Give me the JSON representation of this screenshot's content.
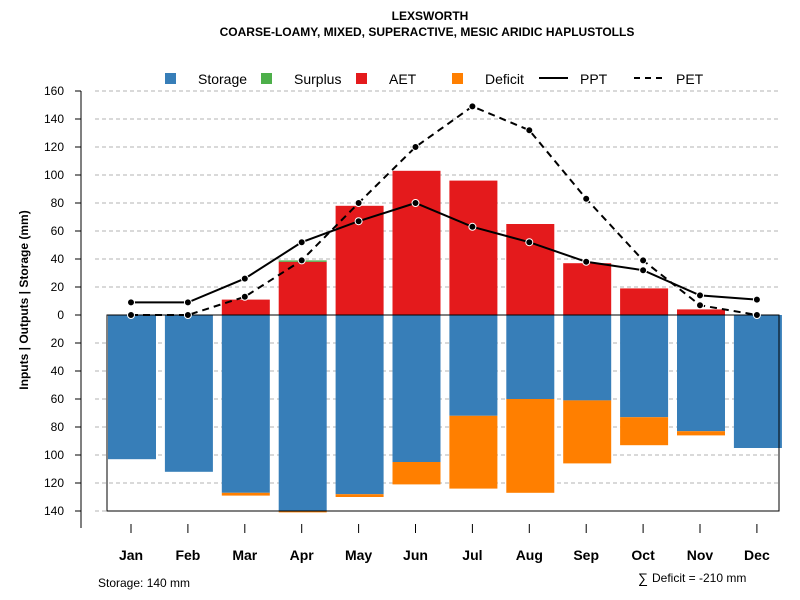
{
  "chart_data": {
    "type": "bar",
    "title": "LEXSWORTH",
    "subtitle": "COARSE-LOAMY, MIXED, SUPERACTIVE, MESIC ARIDIC HAPLUSTOLLS",
    "ylabel": "Inputs | Outputs | Storage    (mm)",
    "categories": [
      "Jan",
      "Feb",
      "Mar",
      "Apr",
      "May",
      "Jun",
      "Jul",
      "Aug",
      "Sep",
      "Oct",
      "Nov",
      "Dec"
    ],
    "ylim": [
      -140,
      160
    ],
    "y_ticks_upper": [
      "160",
      "140",
      "120",
      "100",
      "80",
      "60",
      "40",
      "20",
      "0"
    ],
    "y_ticks_lower": [
      "20",
      "40",
      "60",
      "80",
      "100",
      "120",
      "140"
    ],
    "legend": {
      "storage": "Storage",
      "surplus": "Surplus",
      "aet": "AET",
      "deficit": "Deficit",
      "ppt": "PPT",
      "pet": "PET"
    },
    "colors": {
      "storage": "#377EB8",
      "surplus": "#4DAF4A",
      "aet": "#E41A1C",
      "deficit": "#FF7F00",
      "line": "#000000"
    },
    "series": [
      {
        "name": "Storage",
        "values": [
          103,
          112,
          127,
          140,
          128,
          105,
          72,
          60,
          61,
          73,
          83,
          95
        ]
      },
      {
        "name": "Surplus",
        "values": [
          0,
          0,
          0,
          1,
          0,
          0,
          0,
          0,
          0,
          0,
          0,
          0
        ]
      },
      {
        "name": "AET",
        "values": [
          0,
          0,
          11,
          38,
          78,
          103,
          96,
          65,
          37,
          19,
          4,
          0
        ]
      },
      {
        "name": "Deficit",
        "values": [
          0,
          0,
          2,
          1,
          2,
          16,
          52,
          67,
          45,
          20,
          3,
          0
        ]
      },
      {
        "name": "PPT",
        "values": [
          9,
          9,
          26,
          52,
          67,
          80,
          63,
          52,
          38,
          32,
          14,
          11
        ]
      },
      {
        "name": "PET",
        "values": [
          0,
          0,
          13,
          39,
          80,
          120,
          149,
          132,
          83,
          39,
          7,
          0
        ]
      }
    ],
    "footnote_storage": "Storage: 140 mm",
    "footnote_deficit_symbol": "∑",
    "footnote_deficit": "Deficit = -210 mm"
  }
}
